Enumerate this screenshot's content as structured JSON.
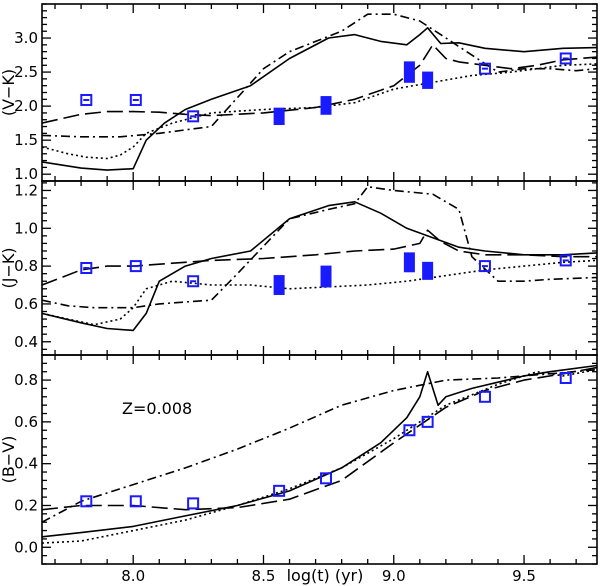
{
  "chart_data": {
    "type": "line",
    "xlabel": "log(t) (yr)",
    "xlim": [
      7.65,
      9.78
    ],
    "xticks": [
      "8.0",
      "8.5",
      "9.0",
      "9.5"
    ],
    "annotation": "Z=0.008",
    "line_styles": [
      "solid",
      "long-dash",
      "dot-dash",
      "dotted"
    ],
    "panels": [
      {
        "id": "vk",
        "ylabel": "(V−K)",
        "ylim": [
          0.9,
          3.5
        ],
        "yticks": [
          "1.0",
          "1.5",
          "2.0",
          "2.5",
          "3.0"
        ],
        "observed_squares": [
          {
            "x": 7.82,
            "y": 2.09
          },
          {
            "x": 8.01,
            "y": 2.09
          },
          {
            "x": 8.23,
            "y": 1.85
          },
          {
            "x": 9.35,
            "y": 2.55
          },
          {
            "x": 9.66,
            "y": 2.7
          }
        ],
        "observed_ranges": [
          {
            "x": 8.56,
            "ylo": 1.73,
            "yhi": 1.97
          },
          {
            "x": 8.74,
            "ylo": 1.88,
            "yhi": 2.14
          },
          {
            "x": 9.06,
            "ylo": 2.35,
            "yhi": 2.65
          },
          {
            "x": 9.13,
            "ylo": 2.26,
            "yhi": 2.5
          }
        ],
        "series": [
          {
            "name": "solid",
            "x": [
              7.65,
              7.8,
              7.9,
              8.0,
              8.05,
              8.12,
              8.2,
              8.3,
              8.45,
              8.6,
              8.75,
              8.85,
              8.95,
              9.05,
              9.1,
              9.13,
              9.18,
              9.25,
              9.35,
              9.5,
              9.65,
              9.78
            ],
            "y": [
              1.18,
              1.09,
              1.06,
              1.08,
              1.5,
              1.75,
              1.95,
              2.1,
              2.3,
              2.7,
              3.0,
              3.05,
              2.95,
              2.9,
              3.05,
              3.15,
              2.92,
              2.93,
              2.85,
              2.8,
              2.85,
              2.86
            ]
          },
          {
            "name": "long-dash",
            "x": [
              7.65,
              7.8,
              7.9,
              8.0,
              8.1,
              8.2,
              8.3,
              8.5,
              8.7,
              8.85,
              9.0,
              9.1,
              9.15,
              9.2,
              9.25,
              9.35,
              9.45,
              9.55,
              9.65,
              9.78
            ],
            "y": [
              1.75,
              1.88,
              1.92,
              1.92,
              1.91,
              1.88,
              1.86,
              1.9,
              1.98,
              2.1,
              2.3,
              2.6,
              2.9,
              2.7,
              2.65,
              2.6,
              2.55,
              2.6,
              2.68,
              2.72
            ]
          },
          {
            "name": "dot-dash",
            "x": [
              7.65,
              7.8,
              7.95,
              8.1,
              8.2,
              8.3,
              8.5,
              8.6,
              8.7,
              8.8,
              8.9,
              9.0,
              9.1,
              9.2,
              9.3,
              9.4,
              9.5,
              9.6,
              9.7,
              9.78
            ],
            "y": [
              1.57,
              1.55,
              1.55,
              1.6,
              1.65,
              1.7,
              2.55,
              2.8,
              2.95,
              3.1,
              3.35,
              3.35,
              3.25,
              3.0,
              2.75,
              2.5,
              2.55,
              2.55,
              2.52,
              2.55
            ]
          },
          {
            "name": "dotted",
            "x": [
              7.65,
              7.75,
              7.82,
              7.9,
              7.95,
              8.0,
              8.05,
              8.15,
              8.3,
              8.5,
              8.7,
              8.85,
              9.0,
              9.15,
              9.3,
              9.45,
              9.55,
              9.65,
              9.78
            ],
            "y": [
              1.4,
              1.3,
              1.25,
              1.23,
              1.28,
              1.4,
              1.6,
              1.75,
              1.9,
              1.95,
              1.98,
              2.05,
              2.25,
              2.35,
              2.45,
              2.5,
              2.55,
              2.6,
              2.62
            ]
          }
        ]
      },
      {
        "id": "jk",
        "ylabel": "(J−K)",
        "ylim": [
          0.33,
          1.25
        ],
        "yticks": [
          "0.4",
          "0.6",
          "0.8",
          "1.0",
          "1.2"
        ],
        "observed_squares": [
          {
            "x": 7.82,
            "y": 0.79
          },
          {
            "x": 8.01,
            "y": 0.8
          },
          {
            "x": 8.23,
            "y": 0.72
          },
          {
            "x": 9.35,
            "y": 0.8
          },
          {
            "x": 9.66,
            "y": 0.83
          }
        ],
        "observed_ranges": [
          {
            "x": 8.56,
            "ylo": 0.65,
            "yhi": 0.75
          },
          {
            "x": 8.74,
            "ylo": 0.69,
            "yhi": 0.8
          },
          {
            "x": 9.06,
            "ylo": 0.77,
            "yhi": 0.87
          },
          {
            "x": 9.13,
            "ylo": 0.73,
            "yhi": 0.82
          }
        ],
        "series": [
          {
            "name": "solid",
            "x": [
              7.65,
              7.8,
              7.9,
              8.0,
              8.05,
              8.1,
              8.2,
              8.3,
              8.45,
              8.6,
              8.75,
              8.85,
              8.95,
              9.05,
              9.15,
              9.25,
              9.35,
              9.5,
              9.65,
              9.78
            ],
            "y": [
              0.55,
              0.5,
              0.47,
              0.46,
              0.55,
              0.72,
              0.8,
              0.84,
              0.88,
              1.05,
              1.12,
              1.14,
              1.08,
              1.0,
              0.95,
              0.9,
              0.88,
              0.86,
              0.86,
              0.87
            ]
          },
          {
            "name": "long-dash",
            "x": [
              7.65,
              7.8,
              7.9,
              8.0,
              8.1,
              8.2,
              8.3,
              8.5,
              8.7,
              8.85,
              9.0,
              9.1,
              9.13,
              9.18,
              9.25,
              9.35,
              9.5,
              9.65,
              9.78
            ],
            "y": [
              0.7,
              0.78,
              0.8,
              0.8,
              0.81,
              0.82,
              0.83,
              0.84,
              0.86,
              0.88,
              0.89,
              0.92,
              0.99,
              0.93,
              0.88,
              0.86,
              0.86,
              0.85,
              0.85
            ]
          },
          {
            "name": "dot-dash",
            "x": [
              7.65,
              7.75,
              7.85,
              8.0,
              8.1,
              8.2,
              8.3,
              8.4,
              8.6,
              8.75,
              8.85,
              8.9,
              9.0,
              9.15,
              9.25,
              9.3,
              9.4,
              9.5,
              9.6,
              9.78
            ],
            "y": [
              0.62,
              0.59,
              0.58,
              0.58,
              0.6,
              0.61,
              0.62,
              0.76,
              1.05,
              1.1,
              1.13,
              1.22,
              1.2,
              1.18,
              1.1,
              0.85,
              0.72,
              0.72,
              0.73,
              0.74
            ]
          },
          {
            "name": "dotted",
            "x": [
              7.65,
              7.75,
              7.85,
              7.95,
              8.0,
              8.05,
              8.15,
              8.3,
              8.45,
              8.6,
              8.75,
              8.9,
              9.05,
              9.2,
              9.35,
              9.5,
              9.65,
              9.78
            ],
            "y": [
              0.55,
              0.52,
              0.49,
              0.52,
              0.58,
              0.68,
              0.72,
              0.7,
              0.7,
              0.68,
              0.69,
              0.7,
              0.72,
              0.75,
              0.78,
              0.8,
              0.82,
              0.83
            ]
          }
        ]
      },
      {
        "id": "bv",
        "ylabel": "(B−V)",
        "ylim": [
          -0.08,
          0.92
        ],
        "yticks": [
          "0.0",
          "0.2",
          "0.4",
          "0.6",
          "0.8"
        ],
        "observed_squares": [
          {
            "x": 7.82,
            "y": 0.22
          },
          {
            "x": 8.01,
            "y": 0.22
          },
          {
            "x": 8.23,
            "y": 0.21
          },
          {
            "x": 8.56,
            "y": 0.27
          },
          {
            "x": 8.74,
            "y": 0.33
          },
          {
            "x": 9.06,
            "y": 0.56
          },
          {
            "x": 9.13,
            "y": 0.6
          },
          {
            "x": 9.35,
            "y": 0.72
          },
          {
            "x": 9.66,
            "y": 0.81
          }
        ],
        "observed_ranges": [],
        "series": [
          {
            "name": "solid",
            "x": [
              7.65,
              7.8,
              8.0,
              8.2,
              8.4,
              8.6,
              8.8,
              8.95,
              9.05,
              9.1,
              9.13,
              9.17,
              9.2,
              9.3,
              9.4,
              9.5,
              9.6,
              9.78
            ],
            "y": [
              0.05,
              0.07,
              0.1,
              0.15,
              0.2,
              0.27,
              0.38,
              0.5,
              0.62,
              0.72,
              0.84,
              0.68,
              0.72,
              0.76,
              0.79,
              0.82,
              0.84,
              0.87
            ]
          },
          {
            "name": "long-dash",
            "x": [
              7.65,
              7.8,
              7.9,
              8.0,
              8.2,
              8.4,
              8.6,
              8.8,
              9.0,
              9.2,
              9.35,
              9.5,
              9.65,
              9.78
            ],
            "y": [
              0.18,
              0.2,
              0.2,
              0.2,
              0.18,
              0.19,
              0.23,
              0.32,
              0.5,
              0.67,
              0.75,
              0.8,
              0.83,
              0.86
            ]
          },
          {
            "name": "dot-dash",
            "x": [
              7.65,
              7.8,
              8.0,
              8.2,
              8.4,
              8.6,
              8.8,
              9.0,
              9.2,
              9.4,
              9.6,
              9.78
            ],
            "y": [
              0.12,
              0.22,
              0.3,
              0.38,
              0.47,
              0.57,
              0.68,
              0.75,
              0.8,
              0.81,
              0.83,
              0.85
            ]
          },
          {
            "name": "dotted",
            "x": [
              7.65,
              7.8,
              8.0,
              8.2,
              8.4,
              8.6,
              8.8,
              9.0,
              9.2,
              9.4,
              9.55,
              9.65,
              9.78
            ],
            "y": [
              0.02,
              0.03,
              0.08,
              0.13,
              0.2,
              0.28,
              0.38,
              0.52,
              0.68,
              0.78,
              0.84,
              0.82,
              0.85
            ]
          }
        ]
      }
    ]
  }
}
